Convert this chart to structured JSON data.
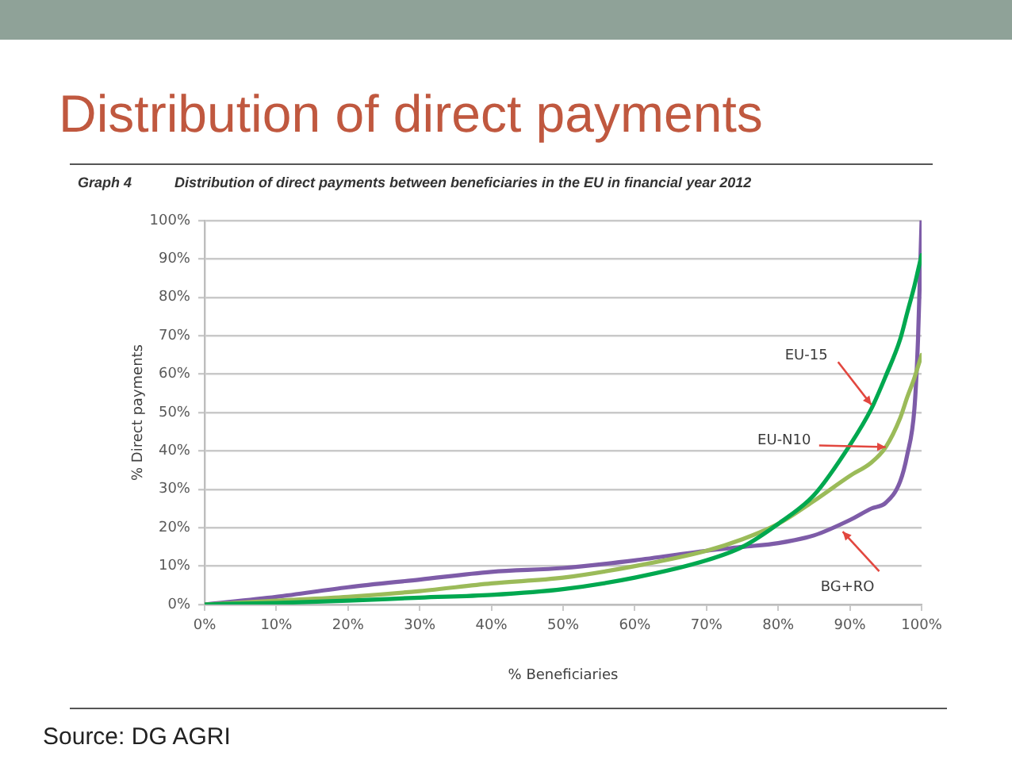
{
  "chart_data": {
    "type": "line",
    "title": "Distribution of direct payments",
    "subtitle": "Distribution of direct payments between beneficiaries in the EU in financial year 2012",
    "xlabel": "% Beneficiaries",
    "ylabel": "% Direct payments",
    "annotations": [
      "Graph 4",
      {
        "text": "EU-15",
        "x": 93,
        "y": 52
      },
      {
        "text": "EU-N10",
        "x": 95,
        "y": 41
      },
      {
        "text": "BG+RO",
        "x": 89,
        "y": 19
      },
      "Source: DG AGRI"
    ],
    "x": [
      0,
      10,
      20,
      30,
      40,
      50,
      60,
      70,
      75,
      80,
      85,
      90,
      93,
      95,
      97,
      98,
      99,
      99.5,
      100
    ],
    "series": [
      {
        "color": "#00a84f",
        "values": [
          0,
          0.4,
          1,
          1.8,
          2.5,
          4,
          7,
          11.5,
          15,
          21,
          28.5,
          41.5,
          51,
          59.5,
          69,
          76,
          83,
          87,
          91
        ]
      },
      {
        "color": "#9bbb59",
        "values": [
          0,
          1,
          2,
          3.5,
          5.5,
          7,
          10,
          14,
          17,
          21,
          27,
          33.5,
          37,
          41,
          48.5,
          54,
          59,
          62,
          65
        ]
      },
      {
        "color": "#7e5ca8",
        "values": [
          0,
          2,
          4.5,
          6.5,
          8.5,
          9.5,
          11.5,
          14,
          15,
          16,
          18,
          22,
          25,
          26.5,
          32,
          39,
          51,
          69,
          100
        ]
      }
    ],
    "xlim": [
      0,
      100
    ],
    "ylim": [
      0,
      100
    ],
    "xticks": [
      {
        "value": 0,
        "label": "0%"
      },
      {
        "value": 10,
        "label": "10%"
      },
      {
        "value": 20,
        "label": "20%"
      },
      {
        "value": 30,
        "label": "30%"
      },
      {
        "value": 40,
        "label": "40%"
      },
      {
        "value": 50,
        "label": "50%"
      },
      {
        "value": 60,
        "label": "60%"
      },
      {
        "value": 70,
        "label": "70%"
      },
      {
        "value": 80,
        "label": "80%"
      },
      {
        "value": 90,
        "label": "90%"
      },
      {
        "value": 100,
        "label": "100%"
      }
    ],
    "yticks": [
      {
        "value": 0,
        "label": "0%"
      },
      {
        "value": 10,
        "label": "10%"
      },
      {
        "value": 20,
        "label": "20%"
      },
      {
        "value": 30,
        "label": "30%"
      },
      {
        "value": 40,
        "label": "40%"
      },
      {
        "value": 50,
        "label": "50%"
      },
      {
        "value": 60,
        "label": "60%"
      },
      {
        "value": 70,
        "label": "70%"
      },
      {
        "value": 80,
        "label": "80%"
      },
      {
        "value": 90,
        "label": "90%"
      },
      {
        "value": 100,
        "label": "100%"
      }
    ],
    "grid": "y",
    "legend": false,
    "marker": "none"
  }
}
